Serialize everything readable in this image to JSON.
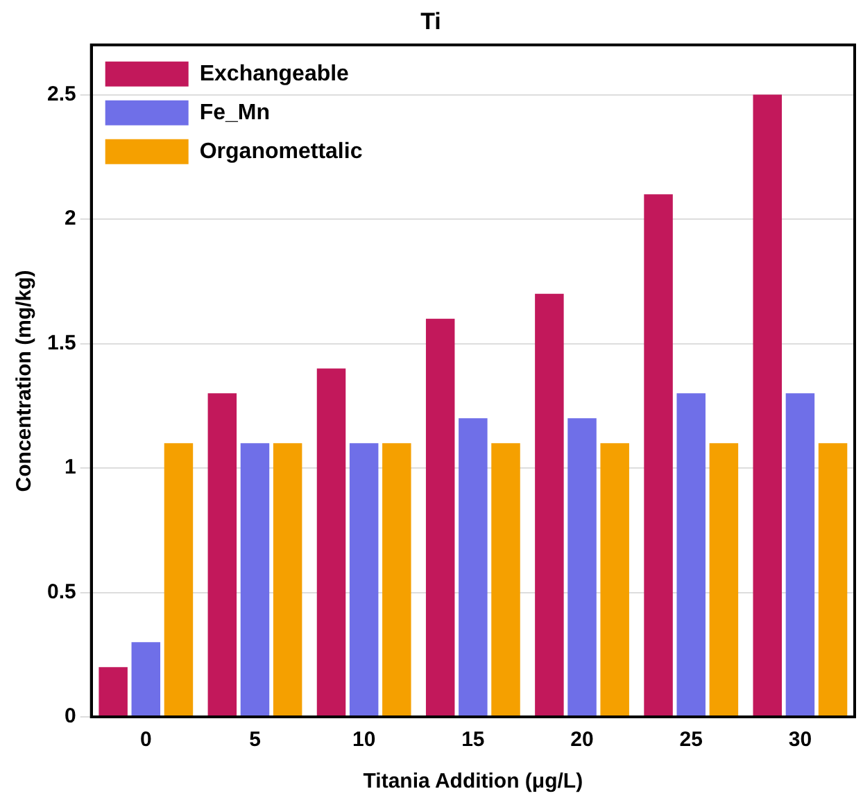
{
  "chart_data": {
    "type": "bar",
    "title": "Ti",
    "xlabel": "Titania Addition (μg/L)",
    "ylabel": "Concentration (mg/kg)",
    "categories": [
      "0",
      "5",
      "10",
      "15",
      "20",
      "25",
      "30"
    ],
    "series": [
      {
        "name": "Exchangeable",
        "color": "#c2185b",
        "values": [
          0.2,
          1.3,
          1.4,
          1.6,
          1.7,
          2.1,
          2.5
        ]
      },
      {
        "name": "Fe_Mn",
        "color": "#6f6fe8",
        "values": [
          0.3,
          1.1,
          1.1,
          1.2,
          1.2,
          1.3,
          1.3
        ]
      },
      {
        "name": "Organomettalic",
        "color": "#f5a000",
        "values": [
          1.1,
          1.1,
          1.1,
          1.1,
          1.1,
          1.1,
          1.1
        ]
      }
    ],
    "ylim": [
      0,
      2.7
    ],
    "yticks": [
      0,
      0.5,
      1,
      1.5,
      2,
      2.5
    ],
    "grid": "y",
    "legend": "top left"
  }
}
